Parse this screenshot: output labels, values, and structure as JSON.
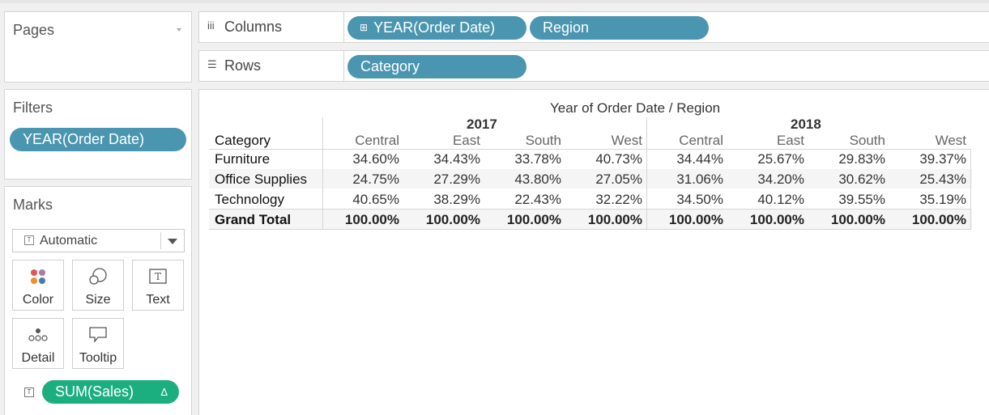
{
  "pages": {
    "title": "Pages"
  },
  "filters": {
    "title": "Filters",
    "pills": [
      "YEAR(Order Date)"
    ]
  },
  "marks": {
    "title": "Marks",
    "mark_type": "Automatic",
    "buttons": {
      "color": "Color",
      "size": "Size",
      "text": "Text",
      "detail": "Detail",
      "tooltip": "Tooltip"
    },
    "sales_pill": "SUM(Sales)",
    "sales_pill_badge": "Δ"
  },
  "columns_shelf": {
    "label": "Columns",
    "pills": [
      "YEAR(Order Date)",
      "Region"
    ],
    "expand_glyph": "⊞"
  },
  "rows_shelf": {
    "label": "Rows",
    "pills": [
      "Category"
    ]
  },
  "view": {
    "title": "Year of Order Date / Region",
    "row_header": "Category",
    "years": [
      "2017",
      "2018"
    ],
    "regions": [
      "Central",
      "East",
      "South",
      "West",
      "Central",
      "East",
      "South",
      "West"
    ],
    "rows": [
      {
        "label": "Furniture",
        "values": [
          "34.60%",
          "34.43%",
          "33.78%",
          "40.73%",
          "34.44%",
          "25.67%",
          "29.83%",
          "39.37%"
        ]
      },
      {
        "label": "Office Supplies",
        "values": [
          "24.75%",
          "27.29%",
          "43.80%",
          "27.05%",
          "31.06%",
          "34.20%",
          "30.62%",
          "25.43%"
        ]
      },
      {
        "label": "Technology",
        "values": [
          "40.65%",
          "38.29%",
          "22.43%",
          "32.22%",
          "34.50%",
          "40.12%",
          "39.55%",
          "35.19%"
        ]
      },
      {
        "label": "Grand Total",
        "values": [
          "100.00%",
          "100.00%",
          "100.00%",
          "100.00%",
          "100.00%",
          "100.00%",
          "100.00%",
          "100.00%"
        ]
      }
    ]
  },
  "colors": {
    "dimension_pill": "#4a96b0",
    "measure_pill": "#1bae7e"
  }
}
